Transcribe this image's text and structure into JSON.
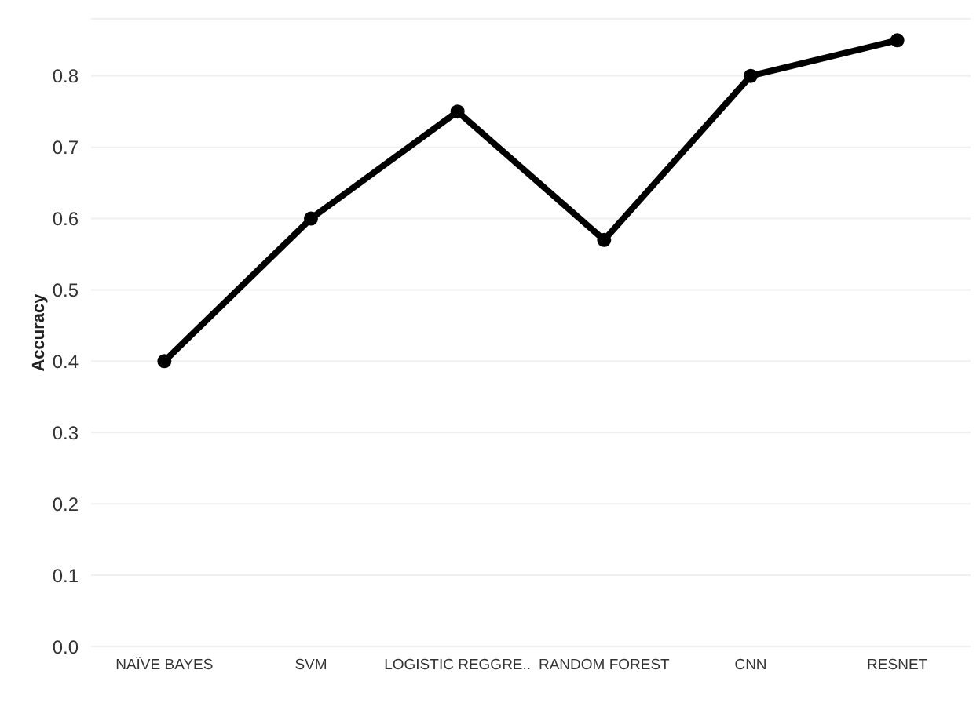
{
  "chart_data": {
    "type": "line",
    "ylabel": "Accuracy",
    "categories": [
      "NAÏVE BAYES",
      "SVM",
      "LOGISTIC REGGRE..",
      "RANDOM FOREST",
      "CNN",
      "RESNET"
    ],
    "series": [
      {
        "color": "#000000",
        "values": [
          0.4,
          0.6,
          0.75,
          0.57,
          0.8,
          0.85
        ]
      }
    ],
    "ylim": [
      0,
      0.88
    ],
    "yticks": [
      {
        "value": 0,
        "label": "0.0"
      },
      0.1,
      0.2,
      0.3,
      0.4,
      0.5,
      0.6,
      0.7,
      0.8
    ],
    "grid": "y",
    "marker": "circle",
    "line_style": "solid"
  }
}
